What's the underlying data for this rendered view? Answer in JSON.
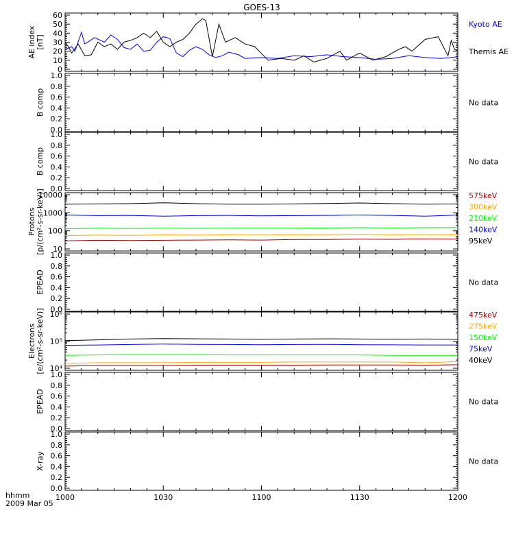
{
  "title": "GOES-13",
  "x_axis": {
    "ticks": [
      "1000",
      "1030",
      "1100",
      "1130",
      "1200"
    ],
    "range_minutes": [
      0,
      120
    ],
    "corner_label_1": "hhmm",
    "corner_label_2": "2009 Mar 05"
  },
  "colors": {
    "black": "#000000",
    "blue": "#0000ff",
    "green": "#00ff00",
    "orange": "#ffaa00",
    "darkred": "#990000"
  },
  "chart_data": [
    {
      "type": "line",
      "panel": "ae-index",
      "ylabel": [
        "AE index",
        "[nT]"
      ],
      "ylim": [
        0,
        60
      ],
      "yticks": [
        "0",
        "10",
        "20",
        "30",
        "40",
        "50",
        "60"
      ],
      "legend": [
        {
          "text": "Kyoto AE",
          "color": "blue"
        },
        {
          "text": "Themis AE",
          "color": "black"
        }
      ],
      "series": [
        {
          "name": "Kyoto AE",
          "color": "blue",
          "x": [
            0,
            2,
            3,
            5,
            6,
            9,
            12,
            14,
            16,
            18,
            20,
            22,
            24,
            26,
            28,
            30,
            32,
            34,
            36,
            38,
            40,
            42,
            44,
            46,
            48,
            50,
            53,
            55,
            60,
            65,
            70,
            75,
            80,
            85,
            90,
            95,
            100,
            105,
            110,
            115,
            118,
            120
          ],
          "y": [
            22,
            25,
            20,
            41,
            28,
            35,
            30,
            38,
            33,
            24,
            22,
            28,
            20,
            21,
            30,
            36,
            34,
            18,
            14,
            21,
            25,
            22,
            16,
            13,
            15,
            19,
            16,
            12,
            13,
            12,
            15,
            14,
            16,
            14,
            13,
            11,
            12,
            15,
            13,
            12,
            13,
            14
          ]
        },
        {
          "name": "Themis AE",
          "color": "black",
          "x": [
            0,
            1,
            2,
            4,
            6,
            8,
            10,
            12,
            14,
            16,
            18,
            20,
            22,
            24,
            26,
            28,
            30,
            32,
            34,
            36,
            38,
            40,
            42,
            43,
            45,
            47,
            49,
            52,
            55,
            58,
            62,
            66,
            70,
            73,
            76,
            80,
            84,
            86,
            90,
            94,
            98,
            102,
            104,
            106,
            110,
            114,
            117,
            118,
            119,
            120
          ],
          "y": [
            30,
            25,
            18,
            28,
            15,
            16,
            30,
            25,
            28,
            22,
            30,
            32,
            35,
            40,
            35,
            42,
            30,
            25,
            30,
            33,
            40,
            50,
            56,
            54,
            14,
            50,
            30,
            35,
            28,
            25,
            10,
            12,
            10,
            15,
            8,
            12,
            20,
            10,
            18,
            10,
            14,
            22,
            25,
            20,
            33,
            36,
            15,
            32,
            22,
            20
          ]
        }
      ]
    },
    {
      "type": "line",
      "panel": "b-comp-1",
      "ylabel": [
        "B comp"
      ],
      "ylim": [
        0,
        1
      ],
      "yticks": [
        "0.0",
        "0.2",
        "0.4",
        "0.6",
        "0.8",
        "1.0"
      ],
      "legend": [
        {
          "text": "No data",
          "color": "black"
        }
      ],
      "series": []
    },
    {
      "type": "line",
      "panel": "b-comp-2",
      "ylabel": [
        "B comp"
      ],
      "ylim": [
        0,
        1
      ],
      "yticks": [
        "0.0",
        "0.2",
        "0.4",
        "0.6",
        "0.8",
        "1.0"
      ],
      "legend": [
        {
          "text": "No data",
          "color": "black"
        }
      ],
      "series": []
    },
    {
      "type": "line",
      "panel": "protons",
      "yscale": "log",
      "ylabel": [
        "Protons",
        "[p/(cm²-s-sr-keV)]"
      ],
      "ylim": [
        10,
        10000
      ],
      "yticks": [
        "10",
        "100",
        "1000",
        "10000"
      ],
      "legend": [
        {
          "text": "575keV",
          "color": "darkred"
        },
        {
          "text": "300keV",
          "color": "orange"
        },
        {
          "text": "210keV",
          "color": "green"
        },
        {
          "text": "140keV",
          "color": "blue"
        },
        {
          "text": "95keV",
          "color": "black"
        }
      ],
      "series": [
        {
          "name": "95keV",
          "color": "black",
          "x": [
            0,
            10,
            20,
            30,
            40,
            50,
            60,
            70,
            80,
            90,
            100,
            110,
            120
          ],
          "y": [
            3000,
            3100,
            3200,
            3600,
            3200,
            3000,
            3000,
            3100,
            3300,
            3500,
            3200,
            3000,
            3100
          ]
        },
        {
          "name": "140keV",
          "color": "blue",
          "x": [
            0,
            10,
            20,
            30,
            40,
            50,
            60,
            70,
            80,
            90,
            100,
            110,
            120
          ],
          "y": [
            750,
            700,
            720,
            650,
            700,
            720,
            680,
            700,
            720,
            750,
            720,
            650,
            750
          ]
        },
        {
          "name": "210keV",
          "color": "green",
          "x": [
            0,
            10,
            20,
            30,
            40,
            50,
            60,
            70,
            80,
            90,
            100,
            110,
            120
          ],
          "y": [
            130,
            140,
            135,
            140,
            138,
            140,
            142,
            140,
            145,
            150,
            145,
            150,
            155
          ]
        },
        {
          "name": "300keV",
          "color": "orange",
          "x": [
            0,
            10,
            20,
            30,
            40,
            50,
            60,
            70,
            80,
            90,
            100,
            110,
            120
          ],
          "y": [
            55,
            58,
            56,
            60,
            58,
            60,
            62,
            60,
            62,
            65,
            60,
            62,
            60
          ]
        },
        {
          "name": "575keV",
          "color": "darkred",
          "x": [
            0,
            10,
            20,
            30,
            40,
            50,
            60,
            70,
            80,
            90,
            100,
            110,
            120
          ],
          "y": [
            28,
            30,
            29,
            30,
            31,
            32,
            31,
            33,
            33,
            35,
            34,
            36,
            35
          ]
        }
      ]
    },
    {
      "type": "line",
      "panel": "epead-1",
      "ylabel": [
        "EPEAD"
      ],
      "ylim": [
        0,
        1
      ],
      "yticks": [
        "0.0",
        "0.2",
        "0.4",
        "0.6",
        "0.8",
        "1.0"
      ],
      "legend": [
        {
          "text": "No data",
          "color": "black"
        }
      ],
      "series": []
    },
    {
      "type": "line",
      "panel": "electrons",
      "yscale": "log",
      "ylabel": [
        "Electrons",
        "[e/(cm²-s-sr-keV)]"
      ],
      "ylim": [
        10000,
        1000000
      ],
      "yticks": [
        "10⁴",
        "10⁵",
        "10⁶"
      ],
      "legend": [
        {
          "text": "475keV",
          "color": "darkred"
        },
        {
          "text": "275keV",
          "color": "orange"
        },
        {
          "text": "150keV",
          "color": "green"
        },
        {
          "text": "75keV",
          "color": "blue"
        },
        {
          "text": "40keV",
          "color": "black"
        }
      ],
      "series": [
        {
          "name": "40keV",
          "color": "black",
          "x": [
            0,
            10,
            20,
            30,
            40,
            50,
            60,
            70,
            80,
            90,
            100,
            110,
            120
          ],
          "y": [
            105000,
            112000,
            120000,
            125000,
            122000,
            120000,
            118000,
            120000,
            122000,
            120000,
            118000,
            120000,
            118000
          ]
        },
        {
          "name": "75keV",
          "color": "blue",
          "x": [
            0,
            10,
            20,
            30,
            40,
            50,
            60,
            70,
            80,
            90,
            100,
            110,
            120
          ],
          "y": [
            70000,
            72000,
            75000,
            78000,
            76000,
            75000,
            74000,
            75000,
            76000,
            74000,
            73000,
            72000,
            72000
          ]
        },
        {
          "name": "150keV",
          "color": "green",
          "x": [
            0,
            10,
            20,
            30,
            40,
            50,
            60,
            70,
            80,
            90,
            100,
            110,
            120
          ],
          "y": [
            30000,
            31000,
            32000,
            32000,
            32000,
            31000,
            31000,
            31000,
            31000,
            31000,
            30000,
            30000,
            30000
          ]
        },
        {
          "name": "275keV",
          "color": "orange",
          "x": [
            0,
            10,
            20,
            30,
            40,
            50,
            60,
            70,
            80,
            90,
            100,
            110,
            120
          ],
          "y": [
            15000,
            16000,
            16000,
            16000,
            16500,
            16500,
            16500,
            17000,
            17000,
            17000,
            17000,
            16000,
            17500
          ]
        },
        {
          "name": "475keV",
          "color": "darkred",
          "x": [
            0,
            10,
            20,
            30,
            40,
            50,
            60,
            70,
            80,
            90,
            100,
            110,
            120
          ],
          "y": [
            12000,
            12500,
            12500,
            12800,
            13000,
            13000,
            13000,
            13000,
            13200,
            13200,
            13200,
            13000,
            13500
          ]
        }
      ]
    },
    {
      "type": "line",
      "panel": "epead-2",
      "ylabel": [
        "EPEAD"
      ],
      "ylim": [
        0,
        1
      ],
      "yticks": [
        "0.0",
        "0.2",
        "0.4",
        "0.6",
        "0.8",
        "1.0"
      ],
      "legend": [
        {
          "text": "No data",
          "color": "black"
        }
      ],
      "series": []
    },
    {
      "type": "line",
      "panel": "x-ray",
      "ylabel": [
        "X-ray"
      ],
      "ylim": [
        0,
        1
      ],
      "yticks": [
        "0.0",
        "0.2",
        "0.4",
        "0.6",
        "0.8",
        "1.0"
      ],
      "legend": [
        {
          "text": "No data",
          "color": "black"
        }
      ],
      "series": []
    }
  ]
}
